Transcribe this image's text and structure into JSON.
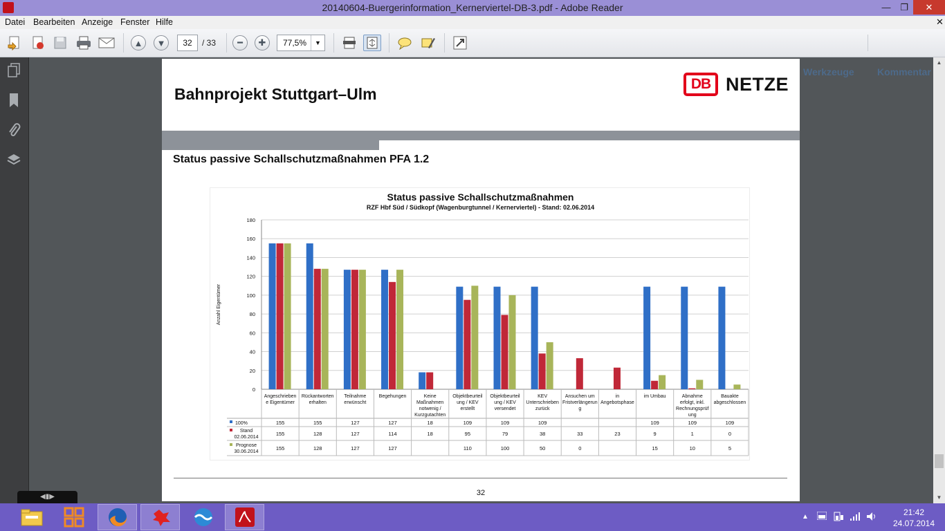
{
  "window": {
    "title": "20140604-Buergerinformation_Kernerviertel-DB-3.pdf - Adobe Reader",
    "min": "—",
    "max": "❐",
    "close": "✕"
  },
  "menu": [
    "Datei",
    "Bearbeiten",
    "Anzeige",
    "Fenster",
    "Hilfe"
  ],
  "menu_close": "✕",
  "toolbar": {
    "page_current": "32",
    "page_total": "/ 33",
    "zoom": "77,5%",
    "tools_label": "Werkzeuge",
    "comment_label": "Kommentar"
  },
  "page": {
    "title": "Bahnprojekt Stuttgart–Ulm",
    "logo_db": "DB",
    "logo_netze": "NETZE",
    "subtitle": "Status passive Schallschutzmaßnahmen PFA 1.2",
    "page_number": "32"
  },
  "chart_data": {
    "type": "bar",
    "title": "Status passive Schallschutzmaßnahmen",
    "subtitle": "RZF Hbf Süd / Südkopf (Wagenburgtunnel / Kernerviertel) - Stand: 02.06.2014",
    "ylabel": "Anzahl Eigentümer",
    "ylim": [
      0,
      180
    ],
    "yticks": [
      0,
      20,
      40,
      60,
      80,
      100,
      120,
      140,
      160,
      180
    ],
    "grid": true,
    "colors": [
      "#2f6fc7",
      "#c02838",
      "#a8b55a"
    ],
    "categories": [
      [
        "Angeschrieben",
        "e Eigentümer"
      ],
      [
        "Rückantworten",
        "erhalten"
      ],
      [
        "Teilnahme",
        "erwünscht"
      ],
      [
        "Begehungen"
      ],
      [
        "Keine",
        "Maßnahmen",
        "notwenig /",
        "Kurzgutachten"
      ],
      [
        "Objektbeurteil",
        "ung / KEV",
        "erstellt"
      ],
      [
        "Objektbeurteil",
        "ung / KEV",
        "versendet"
      ],
      [
        "KEV",
        "Unterschrieben",
        "zurück"
      ],
      [
        "Ansuchen um",
        "Fristverlängerun",
        "g"
      ],
      [
        "in",
        "Angebotsphase"
      ],
      [
        "im Umbau"
      ],
      [
        "Abnahme",
        "erfolgt, inkl.",
        "Rechnungsprüf",
        "ung"
      ],
      [
        "Bauakte",
        "abgeschlossen"
      ]
    ],
    "series": [
      {
        "name": "100%",
        "values": [
          155,
          155,
          127,
          127,
          18,
          109,
          109,
          109,
          null,
          null,
          109,
          109,
          109
        ]
      },
      {
        "name": "Stand 02.06.2014",
        "values": [
          155,
          128,
          127,
          114,
          18,
          95,
          79,
          38,
          33,
          23,
          9,
          1,
          0
        ]
      },
      {
        "name": "Prognose 30.06.2014",
        "values": [
          155,
          128,
          127,
          127,
          null,
          110,
          100,
          50,
          0,
          null,
          15,
          10,
          5
        ]
      }
    ],
    "table_labels": [
      [
        "100%"
      ],
      [
        "Stand",
        "02.06.2014"
      ],
      [
        "Prognose",
        "30.06.2014"
      ]
    ]
  },
  "taskbar": {
    "clock_time": "21:42",
    "clock_date": "24.07.2014"
  },
  "popup_text": "◀▮▶"
}
